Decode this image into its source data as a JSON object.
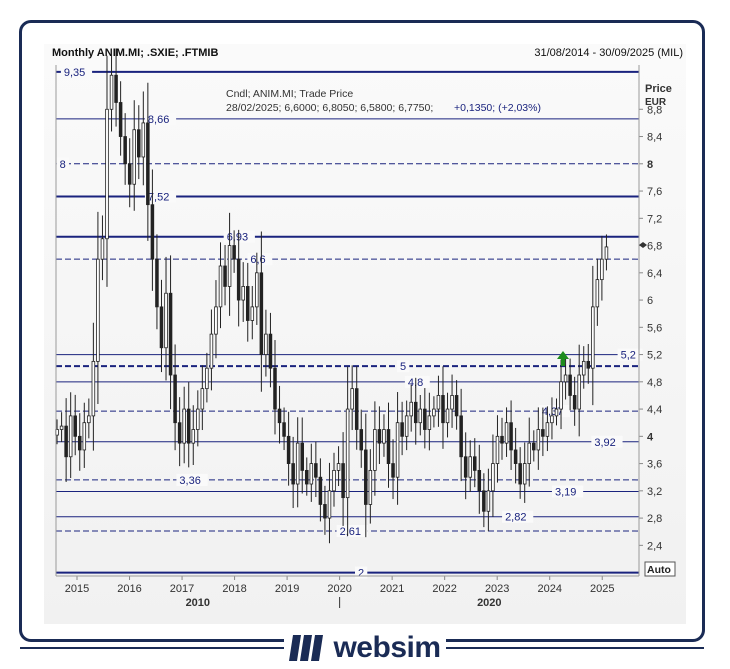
{
  "header": {
    "title": "Monthly ANIM.MI; .SXIE; .FTMIB",
    "date_range": "31/08/2014 - 30/09/2025 (MIL)"
  },
  "brand": {
    "name": "websim",
    "color": "#1a2b55"
  },
  "colors": {
    "accent": "#1a237e",
    "up_arrow": "#1e8c1e",
    "candle": "#222222"
  },
  "chart_data": {
    "type": "candlestick",
    "ylabel": "Price",
    "yunit": "EUR",
    "ylim": [
      1.95,
      9.45
    ],
    "xlim": [
      2014.6,
      2025.7
    ],
    "yticks": [
      "2,4",
      "2,8",
      "3,2",
      "3,6",
      "4",
      "4,4",
      "4,8",
      "5,2",
      "5,6",
      "6",
      "6,4",
      "6,8",
      "7,2",
      "7,6",
      "8",
      "8,4",
      "8,8"
    ],
    "ytick_values": [
      2.4,
      2.8,
      3.2,
      3.6,
      4,
      4.4,
      4.8,
      5.2,
      5.6,
      6,
      6.4,
      6.8,
      7.2,
      7.6,
      8,
      8.4,
      8.8
    ],
    "bold_yticks": [
      "4",
      "8"
    ],
    "xticks": [
      "2015",
      "2016",
      "2017",
      "2018",
      "2019",
      "2020",
      "2021",
      "2022",
      "2023",
      "2024",
      "2025"
    ],
    "xtick_values": [
      2015,
      2016,
      2017,
      2018,
      2019,
      2020,
      2021,
      2022,
      2023,
      2024,
      2025
    ],
    "secondary_xticks": [
      {
        "label": "2010",
        "x": 2017.3
      },
      {
        "label": "2020",
        "x": 2022.85
      }
    ],
    "scale_mode": "Auto",
    "legend_lines": [
      "Cndl; ANIM.MI; Trade Price",
      "28/02/2025; 6,6000; 6,8050; 6,5800; 6,7750;",
      "+0,1350; (+2,03%)"
    ],
    "levels": [
      {
        "value": 9.35,
        "label": "9,35",
        "style": "solid",
        "thick": true,
        "label_x": 2014.75
      },
      {
        "value": 8.66,
        "label": "8,66",
        "style": "solid",
        "thick": false,
        "label_x": 2016.35
      },
      {
        "value": 8.0,
        "label": "8",
        "style": "dashed",
        "thick": false,
        "label_x": 2014.67
      },
      {
        "value": 7.52,
        "label": "7,52",
        "style": "solid",
        "thick": true,
        "label_x": 2016.35
      },
      {
        "value": 6.93,
        "label": "6,93",
        "style": "solid",
        "thick": true,
        "label_x": 2017.85
      },
      {
        "value": 6.6,
        "label": "6,6",
        "style": "dashed",
        "thick": false,
        "label_x": 2018.3
      },
      {
        "value": 5.2,
        "label": "5,2",
        "style": "solid",
        "thick": false,
        "label_x": 2025.35
      },
      {
        "value": 5.03,
        "label": "5",
        "style": "dashed",
        "thick": true,
        "label_x": 2021.15
      },
      {
        "value": 4.8,
        "label": "4,8",
        "style": "solid",
        "thick": false,
        "label_x": 2021.3
      },
      {
        "value": 4.37,
        "label": "4,37",
        "style": "dashed",
        "thick": false,
        "label_x": 2023.85
      },
      {
        "value": 3.92,
        "label": "3,92",
        "style": "solid",
        "thick": false,
        "label_x": 2024.85
      },
      {
        "value": 3.36,
        "label": "3,36",
        "style": "dashed",
        "thick": false,
        "label_x": 2016.95
      },
      {
        "value": 3.19,
        "label": "3,19",
        "style": "solid",
        "thick": false,
        "label_x": 2024.1
      },
      {
        "value": 2.82,
        "label": "2,82",
        "style": "solid",
        "thick": false,
        "label_x": 2023.15
      },
      {
        "value": 2.61,
        "label": "2,61",
        "style": "dashed",
        "thick": false,
        "label_x": 2020.0
      },
      {
        "value": 2.0,
        "label": "2",
        "style": "solid",
        "thick": true,
        "label_x": 2020.35
      }
    ],
    "series_close": [
      4.1,
      4.15,
      3.7,
      4.3,
      4.0,
      3.8,
      4.2,
      4.3,
      5.1,
      6.6,
      6.9,
      8.8,
      9.3,
      8.9,
      8.4,
      8.0,
      7.7,
      8.5,
      8.1,
      8.6,
      7.4,
      6.6,
      5.9,
      5.3,
      6.1,
      4.9,
      4.2,
      3.9,
      4.4,
      3.9,
      4.1,
      4.4,
      4.7,
      5.0,
      5.5,
      5.9,
      6.5,
      6.2,
      6.8,
      6.6,
      6.0,
      6.2,
      5.7,
      5.9,
      6.4,
      5.2,
      5.5,
      5.0,
      4.4,
      4.2,
      4.0,
      3.6,
      3.3,
      3.9,
      3.5,
      3.3,
      3.6,
      3.4,
      3.0,
      2.8,
      3.2,
      3.5,
      3.6,
      3.1,
      4.4,
      4.7,
      4.1,
      3.8,
      3.0,
      3.5,
      4.1,
      3.9,
      4.1,
      3.6,
      3.4,
      4.2,
      4.0,
      4.3,
      4.5,
      4.2,
      4.4,
      4.1,
      4.3,
      4.4,
      4.6,
      4.2,
      4.4,
      4.6,
      4.3,
      3.7,
      3.4,
      3.7,
      3.5,
      3.2,
      2.9,
      3.2,
      3.6,
      4.0,
      3.9,
      4.2,
      3.8,
      3.6,
      3.3,
      3.6,
      3.9,
      3.8,
      4.1,
      4.0,
      4.2,
      4.3,
      4.4,
      4.8,
      4.9,
      4.6,
      4.4,
      4.9,
      5.1,
      5.0,
      5.9,
      6.3,
      6.6,
      6.78
    ]
  }
}
